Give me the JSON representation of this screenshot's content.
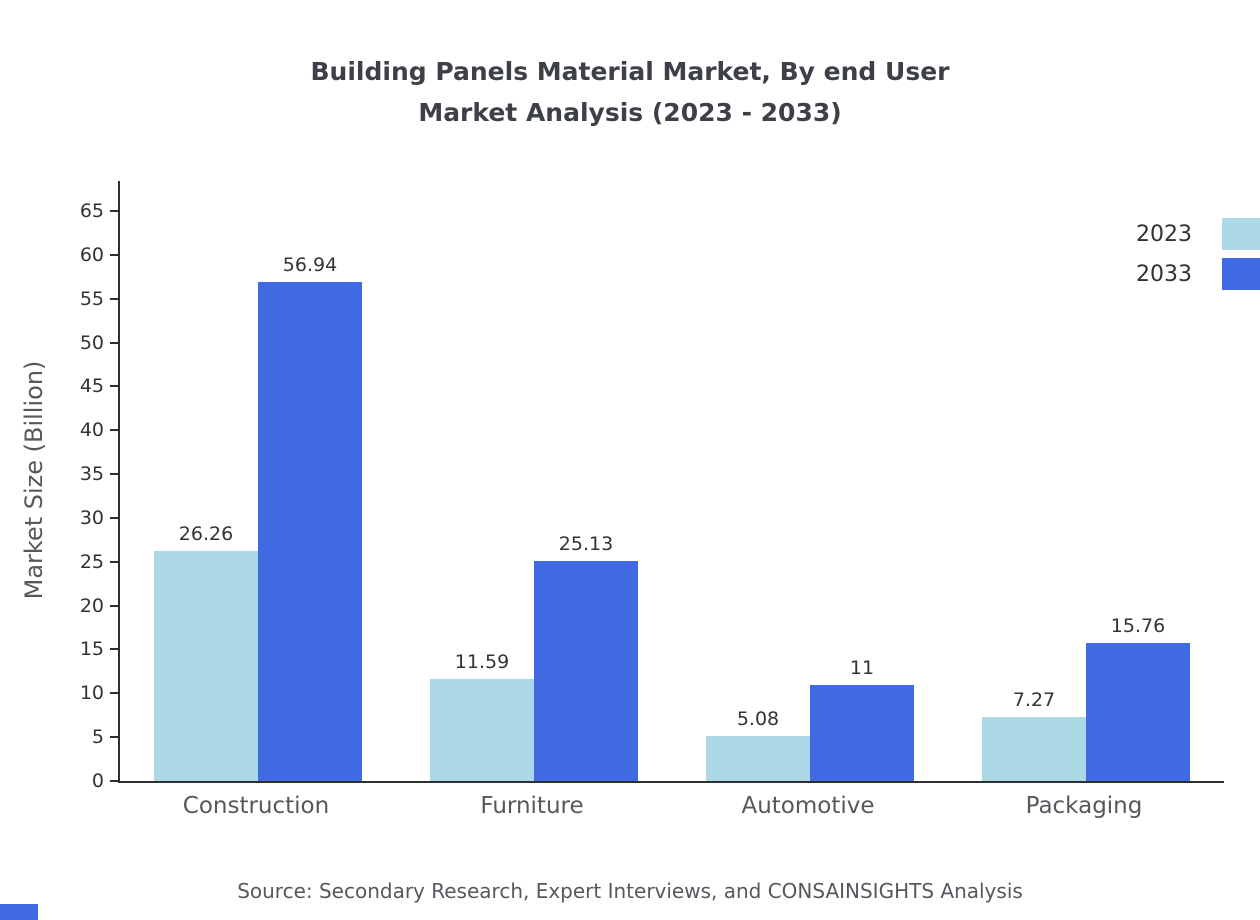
{
  "title": {
    "line1": "Building Panels Material Market, By end User",
    "line2": "Market Analysis (2023 - 2033)"
  },
  "source": "Source: Secondary Research, Expert Interviews, and CONSAINSIGHTS Analysis",
  "colors": {
    "series_2023": "#add8e6",
    "series_2033": "#4169e1",
    "axis": "#2f2f2f"
  },
  "chart_data": {
    "type": "bar",
    "title": "Building Panels Material Market, By end User Market Analysis (2023 - 2033)",
    "categories": [
      "Construction",
      "Furniture",
      "Automotive",
      "Packaging"
    ],
    "series": [
      {
        "name": "2023",
        "color": "#add8e6",
        "values": [
          26.26,
          11.59,
          5.08,
          7.27
        ]
      },
      {
        "name": "2033",
        "color": "#4169e1",
        "values": [
          56.94,
          25.13,
          11,
          15.76
        ]
      }
    ],
    "xlabel": "",
    "ylabel": "Market Size (Billion)",
    "ylim": [
      0,
      65
    ],
    "ytick_step": 5,
    "grid": false,
    "legend_position": "top-right"
  }
}
